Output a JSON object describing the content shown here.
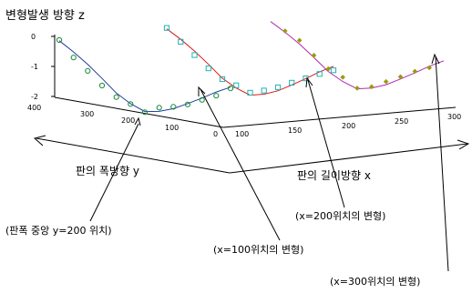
{
  "chart_data": {
    "type": "line",
    "title": "변형발생 방향 z",
    "z_ticks": [
      "0",
      "-1",
      "-2"
    ],
    "z_range": [
      -2,
      0
    ],
    "y_axis": {
      "label": "판의 폭방향 y",
      "ticks": [
        "400",
        "300",
        "200",
        "100",
        "0"
      ],
      "range": [
        0,
        400
      ]
    },
    "x_axis": {
      "label": "판의 길이방향 x",
      "ticks": [
        "100",
        "150",
        "200",
        "250",
        "300"
      ],
      "range": [
        100,
        300
      ]
    },
    "annotations": [
      "(판폭 중앙 y=200 위치)",
      "(x=100위치의 변형)",
      "(x=200위치의 변형)",
      "(x=300위치의 변형)"
    ],
    "colors": {
      "x100_line": "#1f3f9f",
      "x100_marker": "#1a8a3a",
      "x200_line": "#e01818",
      "x200_marker": "#1fb3b3",
      "x300_line": "#b02ab0",
      "x300_marker": "#9a9a12",
      "axes": "#000000"
    },
    "series": [
      {
        "values": [
          {
            "y": 400,
            "z": -0.05
          },
          {
            "y": 380,
            "z": -0.34
          },
          {
            "y": 360,
            "z": -0.67
          },
          {
            "y": 340,
            "z": -1.05
          },
          {
            "y": 320,
            "z": -1.45
          },
          {
            "y": 300,
            "z": -1.72
          },
          {
            "y": 280,
            "z": -1.9
          },
          {
            "y": 260,
            "z": -1.82
          },
          {
            "y": 240,
            "z": -1.66
          },
          {
            "y": 220,
            "z": -1.42
          },
          {
            "y": 200,
            "z": -1.17
          },
          {
            "y": 180,
            "z": -0.9
          },
          {
            "y": 160,
            "z": -0.67
          }
        ],
        "marker_y": [
          400,
          380,
          360,
          340,
          320,
          300,
          280,
          260,
          240,
          220,
          200,
          180,
          160
        ],
        "marker_z": [
          -0.03,
          -0.52,
          -0.88,
          -1.28,
          -1.58,
          -1.73,
          -1.92,
          -1.7,
          -1.6,
          -1.45,
          -1.23,
          -1.02,
          -0.71
        ]
      },
      {
        "values": [
          {
            "y": 400,
            "z": -0.05
          },
          {
            "y": 380,
            "z": -0.34
          },
          {
            "y": 360,
            "z": -0.67
          },
          {
            "y": 340,
            "z": -1.05
          },
          {
            "y": 320,
            "z": -1.45
          },
          {
            "y": 300,
            "z": -1.72
          },
          {
            "y": 280,
            "z": -1.9
          },
          {
            "y": 260,
            "z": -1.82
          },
          {
            "y": 240,
            "z": -1.66
          },
          {
            "y": 220,
            "z": -1.42
          },
          {
            "y": 200,
            "z": -1.17
          },
          {
            "y": 180,
            "z": -0.9
          },
          {
            "y": 160,
            "z": -0.67
          }
        ],
        "marker_y": [
          400,
          380,
          360,
          340,
          320,
          300,
          280,
          260,
          240,
          220,
          200,
          180,
          160
        ],
        "marker_z": [
          -0.02,
          -0.42,
          -0.8,
          -1.18,
          -1.48,
          -1.63,
          -1.82,
          -1.7,
          -1.55,
          -1.35,
          -1.16,
          -0.97,
          -0.8
        ]
      },
      {
        "values": [
          {
            "y": 400,
            "z": -0.05
          },
          {
            "y": 380,
            "z": -0.34
          },
          {
            "y": 360,
            "z": -0.67
          },
          {
            "y": 340,
            "z": -1.05
          },
          {
            "y": 320,
            "z": -1.45
          },
          {
            "y": 300,
            "z": -1.72
          },
          {
            "y": 280,
            "z": -1.9
          },
          {
            "y": 260,
            "z": -1.82
          },
          {
            "y": 240,
            "z": -1.66
          },
          {
            "y": 220,
            "z": -1.42
          },
          {
            "y": 200,
            "z": -1.17
          },
          {
            "y": 180,
            "z": -0.9
          },
          {
            "y": 160,
            "z": -0.67
          }
        ],
        "marker_y": [
          380,
          360,
          340,
          320,
          300,
          280,
          260,
          240,
          220,
          200,
          180
        ],
        "marker_z": [
          -0.3,
          -0.55,
          -0.98,
          -1.36,
          -1.58,
          -1.88,
          -1.78,
          -1.56,
          -1.35,
          -1.12,
          -0.95
        ]
      }
    ]
  }
}
